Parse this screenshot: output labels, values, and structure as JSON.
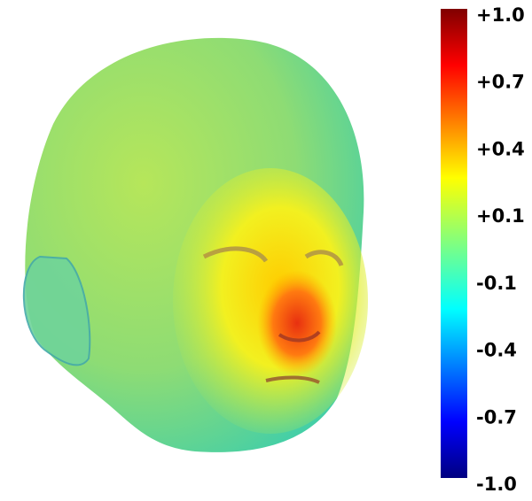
{
  "colorbar": {
    "ticks": [
      "+1.0",
      "+0.7",
      "+0.4",
      "+0.1",
      "-0.1",
      "-0.4",
      "-0.7",
      "-1.0"
    ]
  }
}
